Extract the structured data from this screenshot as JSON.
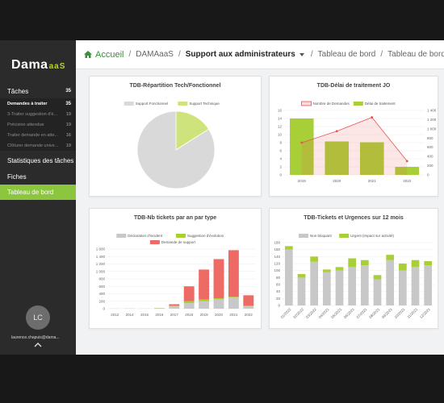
{
  "brand": {
    "name": "Dama",
    "suffix": "aaS",
    "accent": "#8cc63f"
  },
  "sidebar": {
    "items": [
      {
        "label": "Tâches",
        "count": "35"
      },
      {
        "label": "Demandes à traiter",
        "count": "35"
      },
      {
        "label": "3-Traiter suggestion d'é...",
        "count": "19"
      },
      {
        "label": "Précision attendue",
        "count": "19"
      },
      {
        "label": "Traiter demande en atte...",
        "count": "16"
      },
      {
        "label": "Clôturer demande unive...",
        "count": "19"
      },
      {
        "label": "Statistiques des tâches"
      },
      {
        "label": "Fiches"
      },
      {
        "label": "Tableau de bord"
      }
    ],
    "user": {
      "initials": "LC",
      "email": "laurence.chapuis@dama..."
    }
  },
  "breadcrumb": {
    "home": "Accueil",
    "items": [
      "DAMAaaS",
      "Support aux administrateurs",
      "Tableau de bord",
      "Tableau de bord"
    ]
  },
  "charts": {
    "c1": {
      "title": "TDB-Répartition Tech/Fonctionnel"
    },
    "c2": {
      "title": "TDB-Délai de traitement JO"
    },
    "c3": {
      "title": "TDB-Nb tickets par an par type"
    },
    "c4": {
      "title": "TDB-Tickets et Urgences sur 12 mois"
    }
  },
  "chart_data": [
    {
      "type": "pie",
      "title": "TDB-Répartition Tech/Fonctionnel",
      "series": [
        {
          "name": "Support Fonctionnel",
          "value": 84,
          "color": "#d9d9d9"
        },
        {
          "name": "Support Technique",
          "value": 16,
          "color": "#cfe37c"
        }
      ],
      "legend": "top"
    },
    {
      "type": "bar",
      "title": "TDB-Délai de traitement JO",
      "categories": [
        "2019",
        "2020",
        "2021",
        "2022"
      ],
      "series": [
        {
          "name": "Nombre de Demandes",
          "type": "line",
          "axis": "right",
          "values": [
            700,
            950,
            1250,
            300
          ],
          "color": "#e8534f"
        },
        {
          "name": "Délai de traitement",
          "type": "bar",
          "axis": "left",
          "values": [
            14,
            8.3,
            8.1,
            2
          ],
          "color": "#a9cf38"
        }
      ],
      "ylim": [
        0,
        16
      ],
      "yticks": [
        "0",
        "2",
        "4",
        "6",
        "8",
        "10",
        "12",
        "14",
        "16"
      ],
      "y2lim": [
        0,
        1400
      ],
      "y2ticks": [
        "0",
        "200",
        "400",
        "600",
        "800",
        "1 000",
        "1 200",
        "1 400"
      ],
      "legend": "top"
    },
    {
      "type": "bar",
      "stacked": true,
      "title": "TDB-Nb tickets par an par type",
      "categories": [
        "2012",
        "2014",
        "2015",
        "2016",
        "2017",
        "2018",
        "2019",
        "2020",
        "2021",
        "2022"
      ],
      "series": [
        {
          "name": "Déclaration d'incident",
          "values": [
            5,
            8,
            5,
            15,
            60,
            150,
            200,
            250,
            300,
            60
          ],
          "color": "#c8c8c8"
        },
        {
          "name": "Suggestion d'évolution",
          "values": [
            0,
            0,
            0,
            5,
            20,
            50,
            50,
            30,
            20,
            20
          ],
          "color": "#a9cf38"
        },
        {
          "name": "Demande de support",
          "values": [
            0,
            0,
            0,
            0,
            40,
            400,
            800,
            1050,
            1250,
            280
          ],
          "color": "#ee6a64"
        }
      ],
      "ylim": [
        0,
        1600
      ],
      "yticks": [
        "0",
        "200",
        "400",
        "600",
        "800",
        "1 000",
        "1 200",
        "1 400",
        "1 600"
      ],
      "legend": "top"
    },
    {
      "type": "bar",
      "stacked": true,
      "title": "TDB-Tickets et Urgences sur 12 mois",
      "categories": [
        "01/2022",
        "02/2022",
        "03/2022",
        "04/2021",
        "05/2021",
        "06/2021",
        "07/2021",
        "08/2021",
        "09/2021",
        "10/2021",
        "11/2021",
        "12/2021"
      ],
      "series": [
        {
          "name": "Non bloquant",
          "values": [
            160,
            80,
            125,
            95,
            100,
            110,
            115,
            75,
            130,
            100,
            110,
            115
          ],
          "color": "#c8c8c8"
        },
        {
          "name": "Urgent (impact sur activité)",
          "values": [
            10,
            10,
            15,
            8,
            10,
            25,
            15,
            12,
            15,
            20,
            20,
            12
          ],
          "color": "#a9cf38"
        }
      ],
      "ylim": [
        0,
        180
      ],
      "yticks": [
        "0",
        "20",
        "40",
        "60",
        "80",
        "100",
        "120",
        "140",
        "160",
        "180"
      ],
      "legend": "top"
    }
  ]
}
